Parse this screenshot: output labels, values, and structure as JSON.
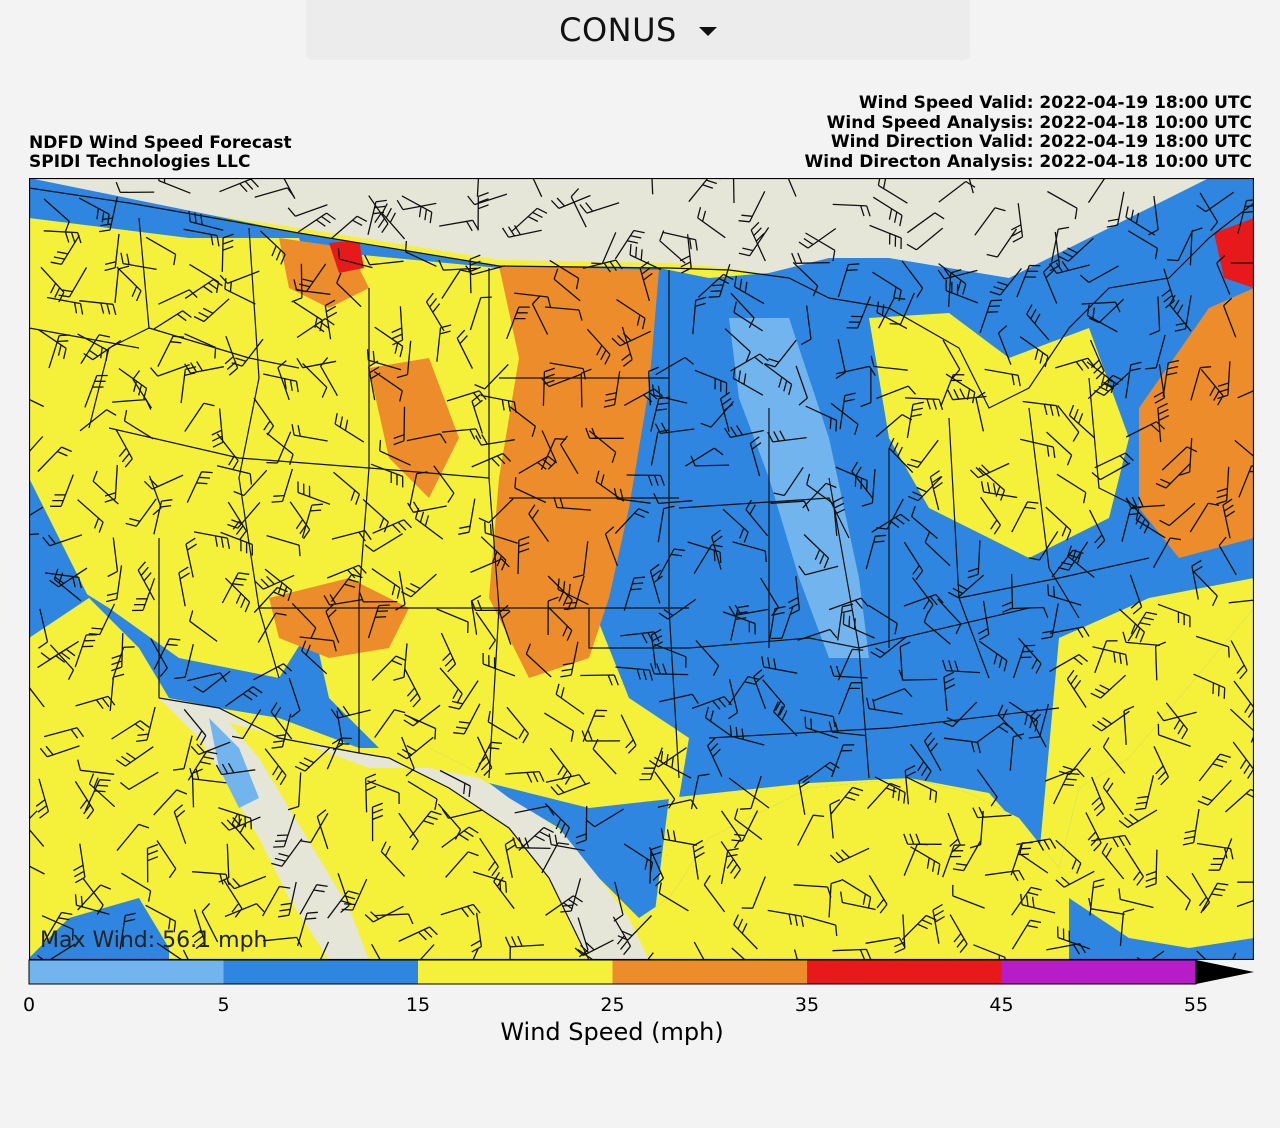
{
  "selector": {
    "value": "CONUS"
  },
  "header": {
    "title_line1": "NDFD Wind Speed Forecast",
    "title_line2": "SPIDI Technologies LLC",
    "info": [
      "Wind Speed Valid: 2022-04-19 18:00 UTC",
      "Wind Speed Analysis: 2022-04-18 10:00 UTC",
      "Wind Direction Valid: 2022-04-19 18:00 UTC",
      "Wind Directon Analysis: 2022-04-18 10:00 UTC"
    ]
  },
  "map": {
    "region": "CONUS",
    "max_wind_label": "Max Wind: 56.1 mph",
    "colors": {
      "land_outside": "#e6e6d8",
      "water": "#8fa8d6",
      "borders": "#111111"
    }
  },
  "colorbar": {
    "title": "Wind Speed (mph)",
    "ticks": [
      "0",
      "5",
      "15",
      "25",
      "35",
      "45",
      "55"
    ],
    "bins": [
      {
        "from": 0,
        "to": 5,
        "color": "#72b5ee"
      },
      {
        "from": 5,
        "to": 15,
        "color": "#2f86e0"
      },
      {
        "from": 15,
        "to": 25,
        "color": "#f5f03a"
      },
      {
        "from": 25,
        "to": 35,
        "color": "#ed8c2a"
      },
      {
        "from": 35,
        "to": 45,
        "color": "#e8191b"
      },
      {
        "from": 45,
        "to": 55,
        "color": "#b81cc8"
      }
    ],
    "extend_color": "#000000"
  }
}
